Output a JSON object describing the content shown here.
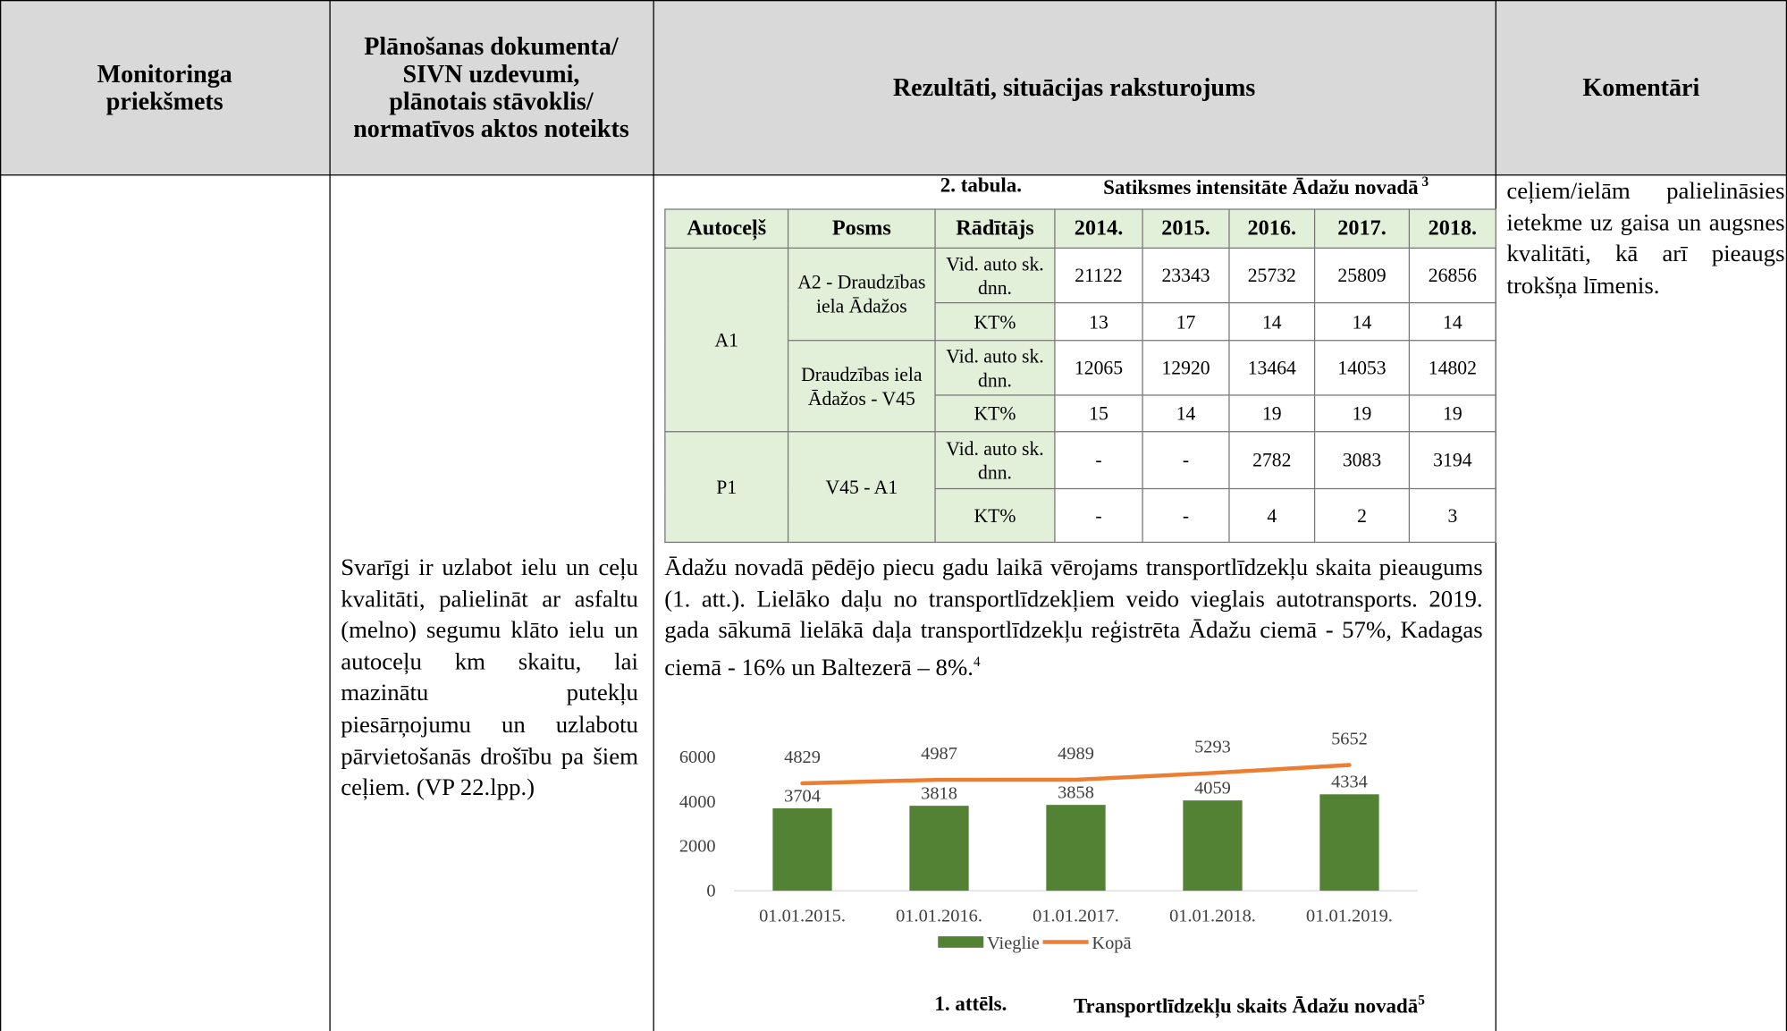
{
  "header": [
    "Monitoringa priekšmets",
    "Plānošanas dokumenta/ SIVN uzdevumi, plānotais stāvoklis/ normatīvos aktos noteikts",
    "Rezultāti, situācijas raksturojums",
    "Komentāri"
  ],
  "task_text": "Svarīgi ir uzlabot ielu un ceļu kvalitāti, palielināt ar asfaltu (melno) segumu klāto ielu un autoceļu km skaitu, lai mazinātu putekļu piesārņojumu un uzlabotu pārvietošanās drošību pa šiem ceļiem. (VP 22.lpp.)",
  "comment_text": "ceļiem/ielām palielināsies ietekme uz gaisa un augsnes kvalitāti, kā arī pieaugs trokšņa līmenis.",
  "table_caption": {
    "label": "2. tabula.",
    "title": "Satiksmes intensitāte Ādažu novadā",
    "footnote": "3"
  },
  "table": {
    "columns": [
      "Autoceļš",
      "Posms",
      "Rādītājs",
      "2014.",
      "2015.",
      "2016.",
      "2017.",
      "2018."
    ],
    "groups": [
      {
        "road": "A1",
        "sections": [
          {
            "name": "A2 - Draudzības iela Ādažos",
            "rows": [
              {
                "indicator": "Vid. auto sk. dnn.",
                "values": [
                  21122,
                  23343,
                  25732,
                  25809,
                  26856
                ]
              },
              {
                "indicator": "KT%",
                "values": [
                  13,
                  17,
                  14,
                  14,
                  14
                ]
              }
            ]
          },
          {
            "name": "Draudzības iela Ādažos - V45",
            "rows": [
              {
                "indicator": "Vid. auto sk. dnn.",
                "values": [
                  12065,
                  12920,
                  13464,
                  14053,
                  14802
                ]
              },
              {
                "indicator": "KT%",
                "values": [
                  15,
                  14,
                  19,
                  19,
                  19
                ]
              }
            ]
          }
        ]
      },
      {
        "road": "P1",
        "sections": [
          {
            "name": "V45 - A1",
            "rows": [
              {
                "indicator": "Vid. auto sk. dnn.",
                "values": [
                  "-",
                  "-",
                  2782,
                  3083,
                  3194
                ]
              },
              {
                "indicator": "KT%",
                "values": [
                  "-",
                  "-",
                  4,
                  2,
                  3
                ]
              }
            ]
          }
        ]
      }
    ]
  },
  "paragraph": "Ādažu novadā pēdējo piecu gadu laikā vērojams transportlīdzekļu skaita pieaugums (1. att.). Lielāko daļu no transportlīdzekļiem veido vieglais autotransports. 2019. gada sākumā lielākā daļa transportlīdzekļu reģistrēta Ādažu ciemā - 57%, Kadagas ciemā - 16% un Baltezerā – 8%.",
  "paragraph_footnote": "4",
  "chart_data": {
    "type": "combo",
    "categories": [
      "01.01.2015.",
      "01.01.2016.",
      "01.01.2017.",
      "01.01.2018.",
      "01.01.2019."
    ],
    "series": [
      {
        "name": "Vieglie",
        "type": "bar",
        "color": "#548235",
        "values": [
          3704,
          3818,
          3858,
          4059,
          4334
        ]
      },
      {
        "name": "Kopā",
        "type": "line",
        "color": "#ed7d31",
        "values": [
          4829,
          4987,
          4989,
          5293,
          5652
        ]
      }
    ],
    "ylim": [
      0,
      6000
    ],
    "yticks": [
      0,
      2000,
      4000,
      6000
    ],
    "grid": false,
    "legend": "bottom"
  },
  "figure_caption": {
    "label": "1. attēls.",
    "title": "Transportlīdzekļu skaits Ādažu novadā",
    "footnote": "5"
  }
}
